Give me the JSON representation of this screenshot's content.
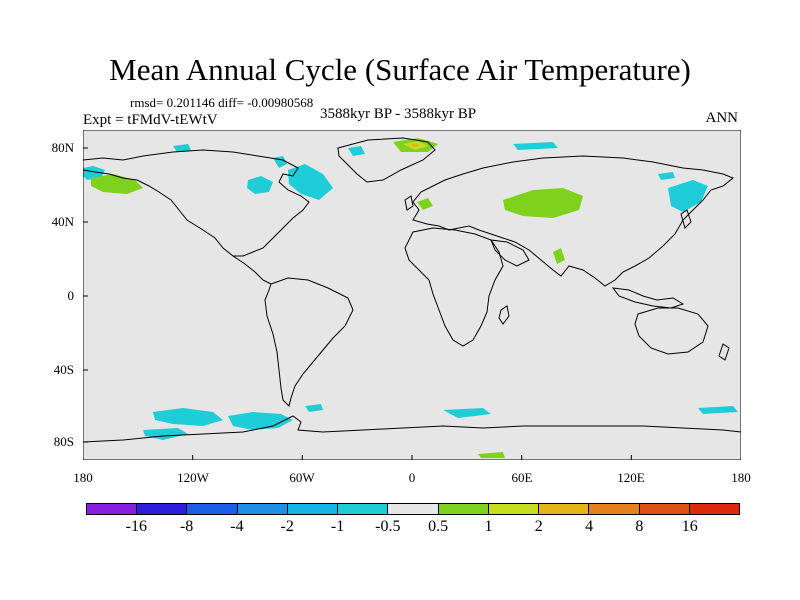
{
  "title": "Mean Annual Cycle (Surface Air Temperature)",
  "stats": "rmsd= 0.201146 diff= -0.00980568",
  "experiment": "Expt = tFMdV-tEWtV",
  "period": "3588kyr BP - 3588kyr BP",
  "season": "ANN",
  "lat_labels": [
    "80N",
    "40N",
    "0",
    "40S",
    "80S"
  ],
  "lon_labels": [
    "180",
    "120W",
    "60W",
    "0",
    "60E",
    "120E",
    "180"
  ],
  "colorbar": {
    "labels": [
      "-16",
      "-8",
      "-4",
      "-2",
      "-1",
      "-0.5",
      "0.5",
      "1",
      "2",
      "4",
      "8",
      "16"
    ],
    "colors": [
      "#8a1ee0",
      "#2e1edc",
      "#1a5ee8",
      "#1e90e6",
      "#14b4e6",
      "#1ecdd8",
      "#e6e6e6",
      "#7ed21e",
      "#c8dc1e",
      "#e6b414",
      "#e6821e",
      "#dc5014",
      "#dc2a0a"
    ]
  },
  "map_colors": {
    "ocean": "#e6e6e6",
    "coast": "#000000",
    "cool": "#1ecdd8",
    "warm_weak": "#7ed21e",
    "warm_mid": "#c8dc1e",
    "warm_strong": "#e6b414"
  }
}
